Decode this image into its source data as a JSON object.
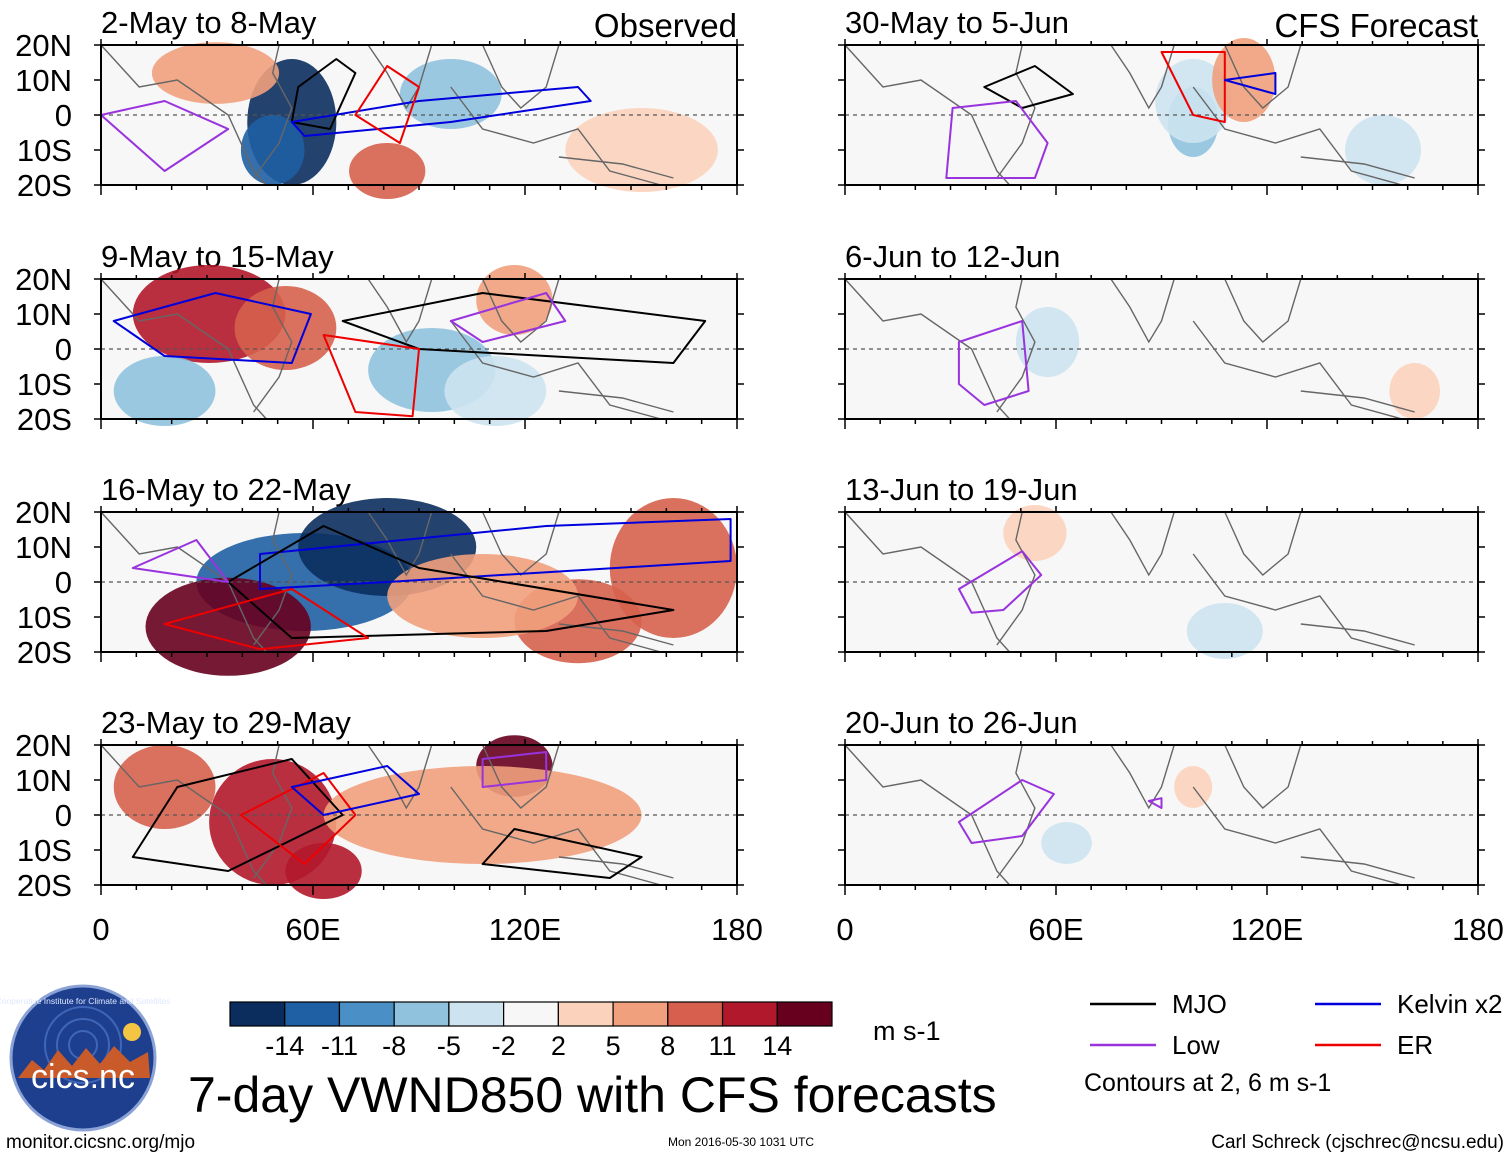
{
  "figure": {
    "title": "7-day VWND850 with CFS forecasts",
    "url": "monitor.cicsnc.org/mjo",
    "timestamp": "Mon 2016-05-30 1031 UTC",
    "author": "Carl Schreck (cjschrec@ncsu.edu)",
    "units": "m s-1",
    "logo": {
      "text": "cics.nc",
      "ring_text": "Cooperative Institute for Climate and Satellites"
    }
  },
  "columns": {
    "observed_label": "Observed",
    "forecast_label": "CFS Forecast"
  },
  "lat_labels": [
    "20N",
    "10N",
    "0",
    "10S",
    "20S"
  ],
  "lon_labels": [
    "0",
    "60E",
    "120E",
    "180"
  ],
  "panels_observed": [
    "2-May to 8-May",
    "9-May to 15-May",
    "16-May to 22-May",
    "23-May to 29-May"
  ],
  "panels_forecast": [
    "30-May to 5-Jun",
    "6-Jun to 12-Jun",
    "13-Jun to 19-Jun",
    "20-Jun to 26-Jun"
  ],
  "colorbar": {
    "colors": [
      "#0b2d5e",
      "#1f5fa3",
      "#4a90c6",
      "#90c2de",
      "#cde3f0",
      "#f7f7f7",
      "#fbd3bd",
      "#f0a07c",
      "#d6604d",
      "#b2182b",
      "#67001f"
    ],
    "labels": [
      "-14",
      "-11",
      "-8",
      "-5",
      "-2",
      "2",
      "5",
      "8",
      "11",
      "14"
    ]
  },
  "legend": {
    "items": [
      {
        "label": "MJO",
        "color": "#000000"
      },
      {
        "label": "Kelvin x2",
        "color": "#0000dd"
      },
      {
        "label": "Low",
        "color": "#9933dd"
      },
      {
        "label": "ER",
        "color": "#ee0000"
      }
    ],
    "note": "Contours at 2, 6 m s-1"
  }
}
